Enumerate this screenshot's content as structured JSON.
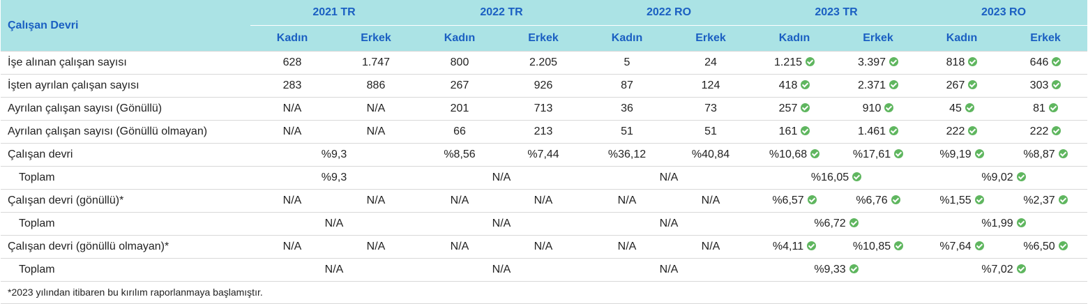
{
  "header": {
    "corner": "Çalışan Devri",
    "years": [
      "2021 TR",
      "2022 TR",
      "2022 RO",
      "2023 TR",
      "2023 RO"
    ],
    "female": "Kadın",
    "male": "Erkek"
  },
  "icons": {
    "check": "check-circle-icon",
    "check_color": "#5fb65f"
  },
  "rows": [
    {
      "label": "İşe alınan çalışan sayısı",
      "indent": false,
      "cells": [
        {
          "t": "628",
          "s": 1
        },
        {
          "t": "1.747",
          "s": 1
        },
        {
          "t": "800",
          "s": 1
        },
        {
          "t": "2.205",
          "s": 1
        },
        {
          "t": "5",
          "s": 1
        },
        {
          "t": "24",
          "s": 1
        },
        {
          "t": "1.215",
          "s": 1,
          "c": true
        },
        {
          "t": "3.397",
          "s": 1,
          "c": true
        },
        {
          "t": "818",
          "s": 1,
          "c": true
        },
        {
          "t": "646",
          "s": 1,
          "c": true
        }
      ]
    },
    {
      "label": "İşten ayrılan çalışan sayısı",
      "indent": false,
      "cells": [
        {
          "t": "283",
          "s": 1
        },
        {
          "t": "886",
          "s": 1
        },
        {
          "t": "267",
          "s": 1
        },
        {
          "t": "926",
          "s": 1
        },
        {
          "t": "87",
          "s": 1
        },
        {
          "t": "124",
          "s": 1
        },
        {
          "t": "418",
          "s": 1,
          "c": true
        },
        {
          "t": "2.371",
          "s": 1,
          "c": true
        },
        {
          "t": "267",
          "s": 1,
          "c": true
        },
        {
          "t": "303",
          "s": 1,
          "c": true
        }
      ]
    },
    {
      "label": "Ayrılan çalışan sayısı (Gönüllü)",
      "indent": false,
      "cells": [
        {
          "t": "N/A",
          "s": 1
        },
        {
          "t": "N/A",
          "s": 1
        },
        {
          "t": "201",
          "s": 1
        },
        {
          "t": "713",
          "s": 1
        },
        {
          "t": "36",
          "s": 1
        },
        {
          "t": "73",
          "s": 1
        },
        {
          "t": "257",
          "s": 1,
          "c": true
        },
        {
          "t": "910",
          "s": 1,
          "c": true
        },
        {
          "t": "45",
          "s": 1,
          "c": true
        },
        {
          "t": "81",
          "s": 1,
          "c": true
        }
      ]
    },
    {
      "label": "Ayrılan çalışan sayısı (Gönüllü olmayan)",
      "indent": false,
      "cells": [
        {
          "t": "N/A",
          "s": 1
        },
        {
          "t": "N/A",
          "s": 1
        },
        {
          "t": "66",
          "s": 1
        },
        {
          "t": "213",
          "s": 1
        },
        {
          "t": "51",
          "s": 1
        },
        {
          "t": "51",
          "s": 1
        },
        {
          "t": "161",
          "s": 1,
          "c": true
        },
        {
          "t": "1.461",
          "s": 1,
          "c": true
        },
        {
          "t": "222",
          "s": 1,
          "c": true
        },
        {
          "t": "222",
          "s": 1,
          "c": true
        }
      ]
    },
    {
      "label": "Çalışan devri",
      "indent": false,
      "cells": [
        {
          "t": "%9,3",
          "s": 2
        },
        {
          "t": "%8,56",
          "s": 1
        },
        {
          "t": "%7,44",
          "s": 1
        },
        {
          "t": "%36,12",
          "s": 1
        },
        {
          "t": "%40,84",
          "s": 1
        },
        {
          "t": "%10,68",
          "s": 1,
          "c": true
        },
        {
          "t": "%17,61",
          "s": 1,
          "c": true
        },
        {
          "t": "%9,19",
          "s": 1,
          "c": true
        },
        {
          "t": "%8,87",
          "s": 1,
          "c": true
        }
      ]
    },
    {
      "label": "Toplam",
      "indent": true,
      "cells": [
        {
          "t": "%9,3",
          "s": 2
        },
        {
          "t": "N/A",
          "s": 2
        },
        {
          "t": "N/A",
          "s": 2
        },
        {
          "t": "%16,05",
          "s": 2,
          "c": true
        },
        {
          "t": "%9,02",
          "s": 2,
          "c": true
        }
      ]
    },
    {
      "label": "Çalışan devri (gönüllü)*",
      "indent": false,
      "cells": [
        {
          "t": "N/A",
          "s": 1
        },
        {
          "t": "N/A",
          "s": 1
        },
        {
          "t": "N/A",
          "s": 1
        },
        {
          "t": "N/A",
          "s": 1
        },
        {
          "t": "N/A",
          "s": 1
        },
        {
          "t": "N/A",
          "s": 1
        },
        {
          "t": "%6,57",
          "s": 1,
          "c": true
        },
        {
          "t": "%6,76",
          "s": 1,
          "c": true
        },
        {
          "t": "%1,55",
          "s": 1,
          "c": true
        },
        {
          "t": "%2,37",
          "s": 1,
          "c": true
        }
      ]
    },
    {
      "label": "Toplam",
      "indent": true,
      "cells": [
        {
          "t": "N/A",
          "s": 2
        },
        {
          "t": "N/A",
          "s": 2
        },
        {
          "t": "N/A",
          "s": 2
        },
        {
          "t": "%6,72",
          "s": 2,
          "c": true
        },
        {
          "t": "%1,99",
          "s": 2,
          "c": true
        }
      ]
    },
    {
      "label": "Çalışan devri (gönüllü olmayan)*",
      "indent": false,
      "cells": [
        {
          "t": "N/A",
          "s": 1
        },
        {
          "t": "N/A",
          "s": 1
        },
        {
          "t": "N/A",
          "s": 1
        },
        {
          "t": "N/A",
          "s": 1
        },
        {
          "t": "N/A",
          "s": 1
        },
        {
          "t": "N/A",
          "s": 1
        },
        {
          "t": "%4,11",
          "s": 1,
          "c": true
        },
        {
          "t": "%10,85",
          "s": 1,
          "c": true
        },
        {
          "t": "%7,64",
          "s": 1,
          "c": true
        },
        {
          "t": "%6,50",
          "s": 1,
          "c": true
        }
      ]
    },
    {
      "label": "Toplam",
      "indent": true,
      "cells": [
        {
          "t": "N/A",
          "s": 2
        },
        {
          "t": "N/A",
          "s": 2
        },
        {
          "t": "N/A",
          "s": 2
        },
        {
          "t": "%9,33",
          "s": 2,
          "c": true
        },
        {
          "t": "%7,02",
          "s": 2,
          "c": true
        }
      ]
    }
  ],
  "footnote": "*2023 yılından itibaren bu kırılım raporlanmaya başlamıştır."
}
